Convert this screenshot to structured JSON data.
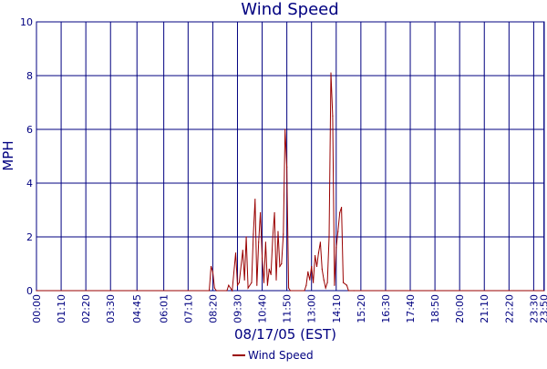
{
  "chart_data": {
    "type": "line",
    "title": "Wind Speed",
    "xlabel": "08/17/05 (EST)",
    "ylabel": "MPH",
    "ylim": [
      0,
      10
    ],
    "y_ticks": [
      0,
      2,
      4,
      6,
      8,
      10
    ],
    "x_ticks": [
      "00:00",
      "01:10",
      "02:20",
      "03:30",
      "04:45",
      "06:01",
      "07:10",
      "08:20",
      "09:30",
      "10:40",
      "11:50",
      "13:00",
      "14:10",
      "15:20",
      "16:30",
      "17:40",
      "18:50",
      "20:00",
      "21:10",
      "22:20",
      "23:30",
      "23:50"
    ],
    "grid": true,
    "legend_position": "bottom-center",
    "colors": {
      "series": "#990000",
      "grid": "#000080",
      "text": "#000080"
    },
    "series": [
      {
        "name": "Wind Speed",
        "points": [
          [
            "00:00",
            0
          ],
          [
            "08:10",
            0
          ],
          [
            "08:15",
            0.9
          ],
          [
            "08:20",
            0.7
          ],
          [
            "08:25",
            0.1
          ],
          [
            "08:30",
            0
          ],
          [
            "09:00",
            0
          ],
          [
            "09:05",
            0.2
          ],
          [
            "09:15",
            0
          ],
          [
            "09:25",
            1.4
          ],
          [
            "09:30",
            0.2
          ],
          [
            "09:35",
            0.3
          ],
          [
            "09:45",
            1.5
          ],
          [
            "09:50",
            0.4
          ],
          [
            "09:55",
            2.0
          ],
          [
            "10:00",
            0.1
          ],
          [
            "10:10",
            0.3
          ],
          [
            "10:15",
            2.1
          ],
          [
            "10:20",
            3.4
          ],
          [
            "10:25",
            0.2
          ],
          [
            "10:30",
            1.8
          ],
          [
            "10:35",
            2.9
          ],
          [
            "10:40",
            1.2
          ],
          [
            "10:45",
            0.3
          ],
          [
            "10:50",
            1.8
          ],
          [
            "10:55",
            0.2
          ],
          [
            "11:00",
            0.8
          ],
          [
            "11:05",
            0.6
          ],
          [
            "11:10",
            2.0
          ],
          [
            "11:15",
            2.9
          ],
          [
            "11:20",
            0.4
          ],
          [
            "11:25",
            2.2
          ],
          [
            "11:30",
            0.9
          ],
          [
            "11:35",
            1.0
          ],
          [
            "11:40",
            2.1
          ],
          [
            "11:45",
            6.0
          ],
          [
            "11:50",
            4.6
          ],
          [
            "11:55",
            0.1
          ],
          [
            "12:00",
            0
          ],
          [
            "12:40",
            0
          ],
          [
            "12:45",
            0.2
          ],
          [
            "12:50",
            0.7
          ],
          [
            "12:55",
            0.4
          ],
          [
            "13:00",
            0.9
          ],
          [
            "13:05",
            0.3
          ],
          [
            "13:10",
            1.3
          ],
          [
            "13:15",
            0.9
          ],
          [
            "13:20",
            1.4
          ],
          [
            "13:25",
            1.8
          ],
          [
            "13:30",
            0.8
          ],
          [
            "13:35",
            0.4
          ],
          [
            "13:40",
            0.1
          ],
          [
            "13:45",
            0.3
          ],
          [
            "13:50",
            2.0
          ],
          [
            "13:55",
            8.1
          ],
          [
            "14:00",
            6.5
          ],
          [
            "14:05",
            0.2
          ],
          [
            "14:10",
            1.6
          ],
          [
            "14:15",
            2.2
          ],
          [
            "14:20",
            2.9
          ],
          [
            "14:25",
            3.1
          ],
          [
            "14:30",
            0.3
          ],
          [
            "14:40",
            0.2
          ],
          [
            "14:45",
            0
          ],
          [
            "15:00",
            0
          ],
          [
            "23:59",
            0
          ]
        ]
      }
    ]
  }
}
